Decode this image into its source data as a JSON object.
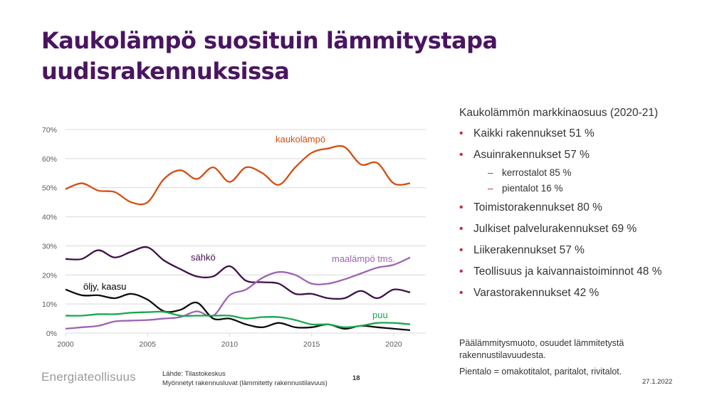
{
  "slide": {
    "title": "Kaukolämpö suosituin lämmitystapa uudisrakennuksissa",
    "logo": "Energiateollisuus",
    "source_line1": "Lähde: Tilastokeskus",
    "source_line2": "Myönnetyt rakennusluvat (lämmitetty rakennustilavuus)",
    "page_number": "18",
    "date": "27.1.2022"
  },
  "sidebar": {
    "heading": "Kaukolämmön markkinaosuus (2020-21)",
    "items": [
      "Kaikki rakennukset 51 %",
      "Asuinrakennukset 57 %",
      "kerrostalot 85 %",
      "pientalot 16 %",
      "Toimistorakennukset 80 %",
      "Julkiset palvelurakennukset 69 %",
      "Liikerakennukset 57 %",
      "Teollisuus ja kaivannaistoiminnot 48 %",
      "Varastorakennukset 42 %"
    ],
    "note1": "Päälämmitysmuoto, osuudet lämmitetystä rakennustilavuudesta.",
    "note2": "Pientalo = omakotitalot, paritalot, rivitalot."
  },
  "colors": {
    "title": "#4a1560",
    "bullet": "#c0293a",
    "kaukolampo": "#d24e12",
    "sahko": "#3f1149",
    "maalampo": "#9e63b2",
    "oljy": "#0d0d0d",
    "puu": "#17a84e",
    "grid": "#d9d9d9",
    "axis_text": "#595959"
  },
  "chart_data": {
    "type": "line",
    "x": [
      2000,
      2001,
      2002,
      2003,
      2004,
      2005,
      2006,
      2007,
      2008,
      2009,
      2010,
      2011,
      2012,
      2013,
      2014,
      2015,
      2016,
      2017,
      2018,
      2019,
      2020,
      2021
    ],
    "xticks": [
      2000,
      2005,
      2010,
      2015,
      2020
    ],
    "xtick_labels": [
      "2000",
      "2005",
      "2010",
      "2015",
      "2020"
    ],
    "ylim": [
      0,
      70
    ],
    "yticks": [
      0,
      10,
      20,
      30,
      40,
      50,
      60,
      70
    ],
    "ytick_labels": [
      "0%",
      "10%",
      "20%",
      "30%",
      "40%",
      "50%",
      "60%",
      "70%"
    ],
    "grid": true,
    "series": [
      {
        "name": "kaukolämpö",
        "color_key": "kaukolampo",
        "values": [
          49.5,
          51.5,
          49,
          48.5,
          45,
          45,
          53,
          56,
          53,
          57,
          52,
          57,
          55,
          51,
          57,
          62,
          63.5,
          64,
          58,
          58.5,
          51.5,
          51.5
        ]
      },
      {
        "name": "sähkö",
        "color_key": "sahko",
        "values": [
          25.5,
          25.5,
          28.5,
          26,
          28,
          29.5,
          25,
          22,
          19.5,
          19.5,
          23,
          18,
          17.5,
          17,
          13.5,
          13.5,
          12,
          12,
          14.5,
          12,
          15,
          14
        ]
      },
      {
        "name": "maalämpö tms.",
        "color_key": "maalampo",
        "values": [
          1.5,
          2,
          2.5,
          4,
          4.3,
          4.5,
          5,
          5.5,
          7.5,
          6,
          13,
          15,
          19,
          21,
          20,
          17,
          17,
          18.5,
          20.5,
          22.5,
          23.5,
          26
        ]
      },
      {
        "name": "öljy, kaasu",
        "color_key": "oljy",
        "values": [
          15,
          13,
          13,
          12,
          13.5,
          11.5,
          7.5,
          8,
          10.5,
          5,
          5,
          3,
          2,
          3.5,
          2,
          2,
          3,
          1.5,
          2.5,
          2,
          1.5,
          1
        ]
      },
      {
        "name": "puu",
        "color_key": "puu",
        "values": [
          6,
          6,
          6.5,
          6.5,
          7,
          7.2,
          7.3,
          6,
          6,
          6,
          6,
          5,
          5.5,
          5.5,
          4.5,
          3,
          3,
          2,
          2.5,
          3.5,
          3.5,
          3
        ]
      }
    ]
  }
}
